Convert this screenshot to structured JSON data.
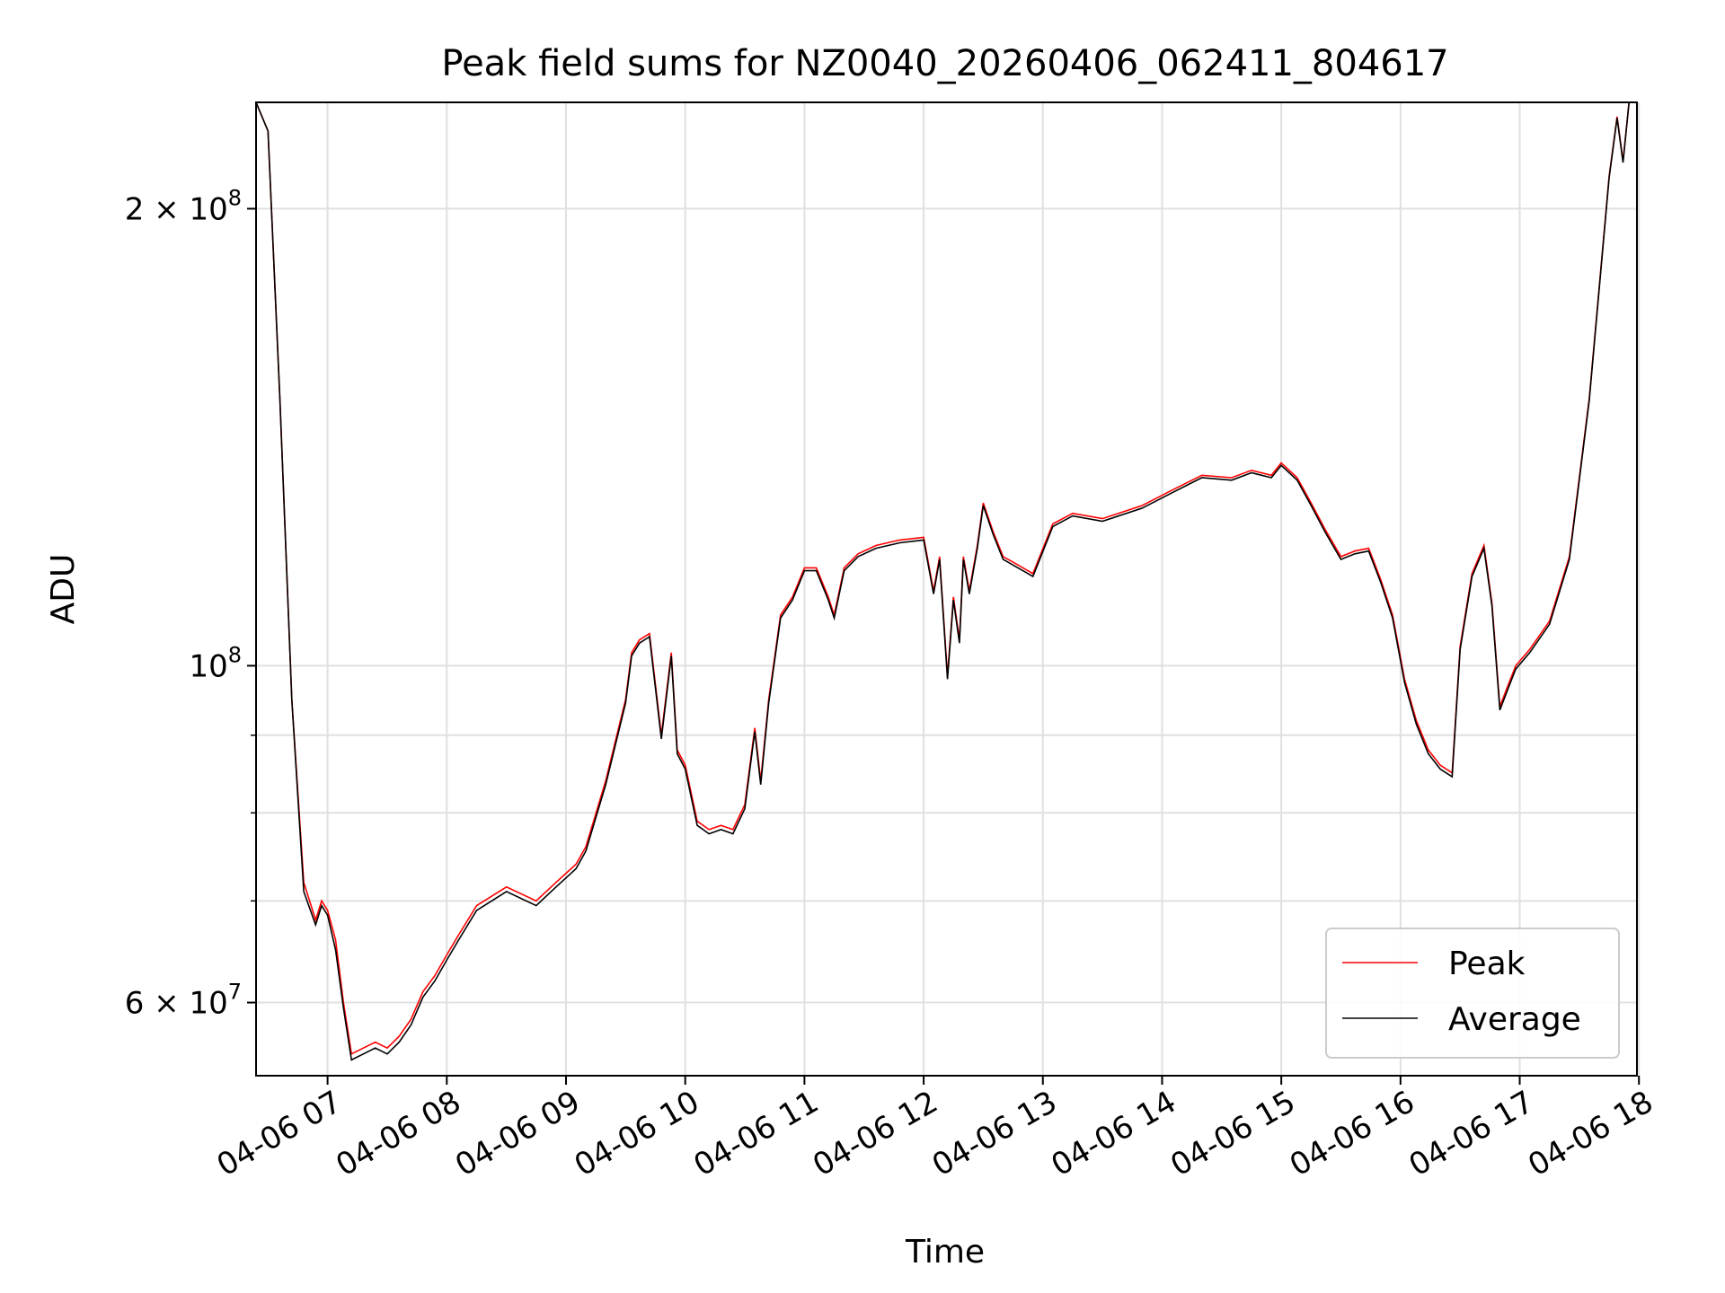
{
  "chart_data": {
    "type": "line",
    "title": "Peak field sums for NZ0040_20260406_062411_804617",
    "xlabel": "Time",
    "ylabel": "ADU",
    "yscale": "log",
    "grid": true,
    "legend_position": "lower-right",
    "xlim": [
      "2026-04-06 06:24",
      "2026-04-06 17:59"
    ],
    "ylim": [
      53700000,
      235000000
    ],
    "x_ticks": [
      "04-06 07",
      "04-06 08",
      "04-06 09",
      "04-06 10",
      "04-06 11",
      "04-06 12",
      "04-06 13",
      "04-06 14",
      "04-06 15",
      "04-06 16",
      "04-06 17",
      "04-06 18"
    ],
    "y_major_ticks": [
      {
        "value": 100000000,
        "label_base": "10",
        "label_exp": "8"
      },
      {
        "value": 60000000,
        "label_base": "6 × 10",
        "label_exp": "7"
      },
      {
        "value": 200000000,
        "label_base": "2 × 10",
        "label_exp": "8"
      }
    ],
    "y_minor_ticks": [
      70000000,
      80000000,
      90000000
    ],
    "colors": {
      "peak": "#ff0000",
      "average": "#000000"
    },
    "series": [
      {
        "name": "Peak",
        "x": [
          "2026-04-06 06:24",
          "2026-04-06 06:30",
          "2026-04-06 06:36",
          "2026-04-06 06:42",
          "2026-04-06 06:48",
          "2026-04-06 06:54",
          "2026-04-06 06:57",
          "2026-04-06 07:00",
          "2026-04-06 07:04",
          "2026-04-06 07:08",
          "2026-04-06 07:12",
          "2026-04-06 07:18",
          "2026-04-06 07:24",
          "2026-04-06 07:30",
          "2026-04-06 07:36",
          "2026-04-06 07:42",
          "2026-04-06 07:48",
          "2026-04-06 07:54",
          "2026-04-06 08:00",
          "2026-04-06 08:06",
          "2026-04-06 08:15",
          "2026-04-06 08:30",
          "2026-04-06 08:45",
          "2026-04-06 08:55",
          "2026-04-06 09:05",
          "2026-04-06 09:10",
          "2026-04-06 09:20",
          "2026-04-06 09:30",
          "2026-04-06 09:33",
          "2026-04-06 09:37",
          "2026-04-06 09:42",
          "2026-04-06 09:48",
          "2026-04-06 09:53",
          "2026-04-06 09:56",
          "2026-04-06 10:00",
          "2026-04-06 10:06",
          "2026-04-06 10:12",
          "2026-04-06 10:18",
          "2026-04-06 10:24",
          "2026-04-06 10:30",
          "2026-04-06 10:35",
          "2026-04-06 10:38",
          "2026-04-06 10:42",
          "2026-04-06 10:48",
          "2026-04-06 10:54",
          "2026-04-06 11:00",
          "2026-04-06 11:06",
          "2026-04-06 11:12",
          "2026-04-06 11:15",
          "2026-04-06 11:20",
          "2026-04-06 11:27",
          "2026-04-06 11:36",
          "2026-04-06 11:48",
          "2026-04-06 12:00",
          "2026-04-06 12:05",
          "2026-04-06 12:08",
          "2026-04-06 12:12",
          "2026-04-06 12:15",
          "2026-04-06 12:18",
          "2026-04-06 12:20",
          "2026-04-06 12:23",
          "2026-04-06 12:27",
          "2026-04-06 12:30",
          "2026-04-06 12:35",
          "2026-04-06 12:40",
          "2026-04-06 12:45",
          "2026-04-06 12:55",
          "2026-04-06 13:05",
          "2026-04-06 13:15",
          "2026-04-06 13:30",
          "2026-04-06 13:50",
          "2026-04-06 14:05",
          "2026-04-06 14:20",
          "2026-04-06 14:35",
          "2026-04-06 14:45",
          "2026-04-06 14:55",
          "2026-04-06 15:00",
          "2026-04-06 15:08",
          "2026-04-06 15:15",
          "2026-04-06 15:22",
          "2026-04-06 15:30",
          "2026-04-06 15:37",
          "2026-04-06 15:44",
          "2026-04-06 15:50",
          "2026-04-06 15:56",
          "2026-04-06 16:02",
          "2026-04-06 16:08",
          "2026-04-06 16:14",
          "2026-04-06 16:20",
          "2026-04-06 16:26",
          "2026-04-06 16:30",
          "2026-04-06 16:36",
          "2026-04-06 16:42",
          "2026-04-06 16:46",
          "2026-04-06 16:50",
          "2026-04-06 16:54",
          "2026-04-06 16:58",
          "2026-04-06 17:05",
          "2026-04-06 17:15",
          "2026-04-06 17:25",
          "2026-04-06 17:35",
          "2026-04-06 17:45",
          "2026-04-06 17:49",
          "2026-04-06 17:52",
          "2026-04-06 17:55",
          "2026-04-06 17:59"
        ],
        "values": [
          235000000,
          225000000,
          150000000,
          95000000,
          72000000,
          68000000,
          70000000,
          69000000,
          66000000,
          60000000,
          55500000,
          56000000,
          56500000,
          56000000,
          57000000,
          58500000,
          61000000,
          62500000,
          64500000,
          66500000,
          69500000,
          71500000,
          70000000,
          72000000,
          74000000,
          76000000,
          84000000,
          95000000,
          102000000,
          104000000,
          105000000,
          90000000,
          102000000,
          88000000,
          86000000,
          79000000,
          78000000,
          78500000,
          78000000,
          81000000,
          91000000,
          84000000,
          95000000,
          108000000,
          111000000,
          116000000,
          116000000,
          111000000,
          108000000,
          116000000,
          118500000,
          120000000,
          121000000,
          121500000,
          112000000,
          118000000,
          98500000,
          111000000,
          104000000,
          118000000,
          112000000,
          120000000,
          128000000,
          122500000,
          118000000,
          117000000,
          115000000,
          124000000,
          126000000,
          125000000,
          127500000,
          130500000,
          133500000,
          133000000,
          134500000,
          133500000,
          136000000,
          133000000,
          128000000,
          123000000,
          118000000,
          119000000,
          119500000,
          114000000,
          108000000,
          98000000,
          92000000,
          88000000,
          86000000,
          85000000,
          103000000,
          115000000,
          120000000,
          110000000,
          94000000,
          97000000,
          100000000,
          102500000,
          107000000,
          118000000,
          150000000,
          210000000,
          230000000,
          215000000,
          235000000,
          235000000
        ]
      },
      {
        "name": "Average",
        "x": [
          "2026-04-06 06:24",
          "2026-04-06 06:30",
          "2026-04-06 06:36",
          "2026-04-06 06:42",
          "2026-04-06 06:48",
          "2026-04-06 06:54",
          "2026-04-06 06:57",
          "2026-04-06 07:00",
          "2026-04-06 07:04",
          "2026-04-06 07:08",
          "2026-04-06 07:12",
          "2026-04-06 07:18",
          "2026-04-06 07:24",
          "2026-04-06 07:30",
          "2026-04-06 07:36",
          "2026-04-06 07:42",
          "2026-04-06 07:48",
          "2026-04-06 07:54",
          "2026-04-06 08:00",
          "2026-04-06 08:06",
          "2026-04-06 08:15",
          "2026-04-06 08:30",
          "2026-04-06 08:45",
          "2026-04-06 08:55",
          "2026-04-06 09:05",
          "2026-04-06 09:10",
          "2026-04-06 09:20",
          "2026-04-06 09:30",
          "2026-04-06 09:33",
          "2026-04-06 09:37",
          "2026-04-06 09:42",
          "2026-04-06 09:48",
          "2026-04-06 09:53",
          "2026-04-06 09:56",
          "2026-04-06 10:00",
          "2026-04-06 10:06",
          "2026-04-06 10:12",
          "2026-04-06 10:18",
          "2026-04-06 10:24",
          "2026-04-06 10:30",
          "2026-04-06 10:35",
          "2026-04-06 10:38",
          "2026-04-06 10:42",
          "2026-04-06 10:48",
          "2026-04-06 10:54",
          "2026-04-06 11:00",
          "2026-04-06 11:06",
          "2026-04-06 11:12",
          "2026-04-06 11:15",
          "2026-04-06 11:20",
          "2026-04-06 11:27",
          "2026-04-06 11:36",
          "2026-04-06 11:48",
          "2026-04-06 12:00",
          "2026-04-06 12:05",
          "2026-04-06 12:08",
          "2026-04-06 12:12",
          "2026-04-06 12:15",
          "2026-04-06 12:18",
          "2026-04-06 12:20",
          "2026-04-06 12:23",
          "2026-04-06 12:27",
          "2026-04-06 12:30",
          "2026-04-06 12:35",
          "2026-04-06 12:40",
          "2026-04-06 12:45",
          "2026-04-06 12:55",
          "2026-04-06 13:05",
          "2026-04-06 13:15",
          "2026-04-06 13:30",
          "2026-04-06 13:50",
          "2026-04-06 14:05",
          "2026-04-06 14:20",
          "2026-04-06 14:35",
          "2026-04-06 14:45",
          "2026-04-06 14:55",
          "2026-04-06 15:00",
          "2026-04-06 15:08",
          "2026-04-06 15:15",
          "2026-04-06 15:22",
          "2026-04-06 15:30",
          "2026-04-06 15:37",
          "2026-04-06 15:44",
          "2026-04-06 15:50",
          "2026-04-06 15:56",
          "2026-04-06 16:02",
          "2026-04-06 16:08",
          "2026-04-06 16:14",
          "2026-04-06 16:20",
          "2026-04-06 16:26",
          "2026-04-06 16:30",
          "2026-04-06 16:36",
          "2026-04-06 16:42",
          "2026-04-06 16:46",
          "2026-04-06 16:50",
          "2026-04-06 16:54",
          "2026-04-06 16:58",
          "2026-04-06 17:05",
          "2026-04-06 17:15",
          "2026-04-06 17:25",
          "2026-04-06 17:35",
          "2026-04-06 17:45",
          "2026-04-06 17:49",
          "2026-04-06 17:52",
          "2026-04-06 17:55",
          "2026-04-06 17:59"
        ],
        "values": [
          235000000,
          225000000,
          150000000,
          95000000,
          71000000,
          67500000,
          69500000,
          68500000,
          65000000,
          59500000,
          55000000,
          55500000,
          56000000,
          55500000,
          56500000,
          58000000,
          60500000,
          62000000,
          64000000,
          66000000,
          69000000,
          71000000,
          69500000,
          71500000,
          73500000,
          75500000,
          83500000,
          94500000,
          101500000,
          103500000,
          104500000,
          89500000,
          101500000,
          87500000,
          85500000,
          78500000,
          77500000,
          78000000,
          77500000,
          80500000,
          90500000,
          83500000,
          94500000,
          107500000,
          110500000,
          115500000,
          115500000,
          110500000,
          107500000,
          115500000,
          118000000,
          119500000,
          120500000,
          121000000,
          111500000,
          117500000,
          98000000,
          110500000,
          103500000,
          117500000,
          111500000,
          119500000,
          127500000,
          122000000,
          117500000,
          116500000,
          114500000,
          123500000,
          125500000,
          124500000,
          127000000,
          130000000,
          133000000,
          132500000,
          134000000,
          133000000,
          135500000,
          132500000,
          127500000,
          122500000,
          117500000,
          118500000,
          119000000,
          113500000,
          107500000,
          97500000,
          91500000,
          87500000,
          85500000,
          84500000,
          102500000,
          114500000,
          119500000,
          109500000,
          93500000,
          96500000,
          99500000,
          102000000,
          106500000,
          117500000,
          149500000,
          209500000,
          229500000,
          214500000,
          235000000,
          235000000
        ]
      }
    ]
  }
}
